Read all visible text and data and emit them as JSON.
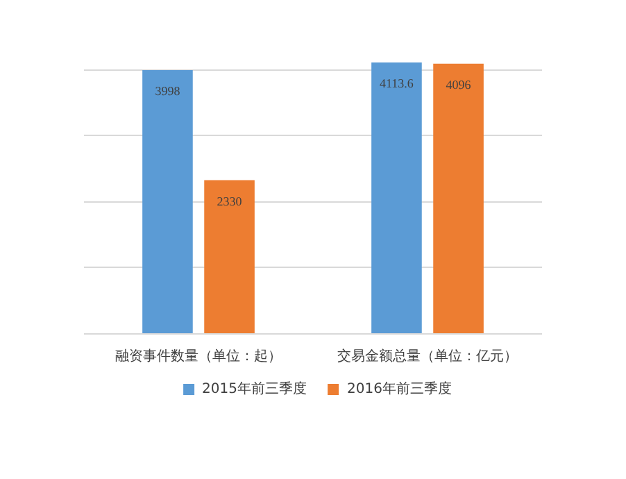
{
  "chart_data": {
    "type": "bar",
    "categories": [
      "融资事件数量（单位：起）",
      "交易金额总量（单位：亿元）"
    ],
    "series": [
      {
        "name": "2015年前三季度",
        "color": "#5b9bd5",
        "values": [
          3998,
          4113.6
        ]
      },
      {
        "name": "2016年前三季度",
        "color": "#ed7d31",
        "values": [
          2330,
          4096
        ]
      }
    ],
    "data_labels": true,
    "tick_labels": "x",
    "grid": "y",
    "legend": "bottom"
  }
}
